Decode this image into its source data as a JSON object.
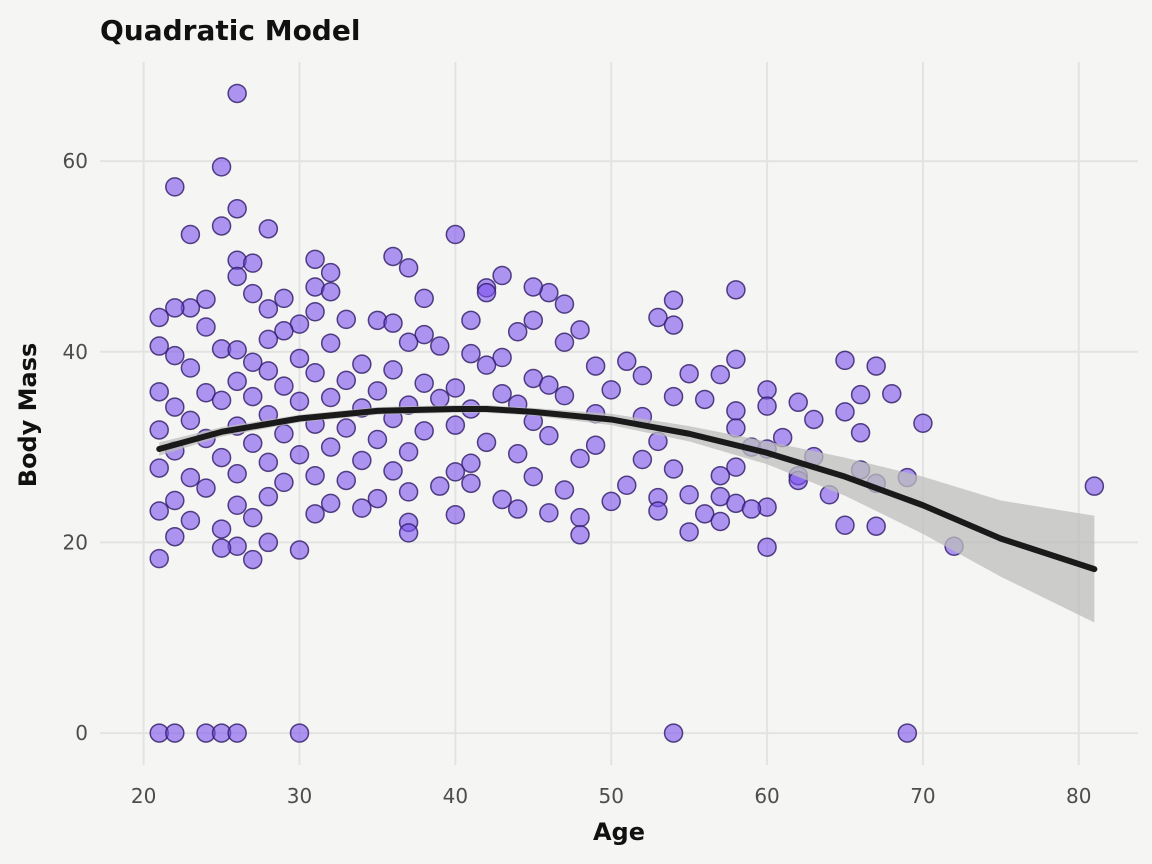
{
  "chart_data": {
    "type": "scatter",
    "title": "Quadratic Model",
    "xlabel": "Age",
    "ylabel": "Body Mass",
    "xlim": [
      17.2,
      83.8
    ],
    "ylim": [
      -3.35,
      70.4
    ],
    "x_ticks": [
      20,
      30,
      40,
      50,
      60,
      70,
      80
    ],
    "y_ticks": [
      0,
      20,
      40,
      60
    ],
    "x_tick_labels": [
      "20",
      "30",
      "40",
      "50",
      "60",
      "70",
      "80"
    ],
    "y_tick_labels": [
      "0",
      "20",
      "40",
      "60"
    ],
    "grid": true,
    "legend": "none",
    "colors": {
      "background": "#f5f5f3",
      "grid": "#e3e3e1",
      "point_fill": "#7b52ec",
      "point_stroke": "#2e1a66",
      "fit_line": "#1a1a1a",
      "ribbon": "#bdbdbd"
    },
    "points": [
      [
        26,
        67.1
      ],
      [
        25,
        59.4
      ],
      [
        22,
        57.3
      ],
      [
        26,
        55.0
      ],
      [
        25,
        53.2
      ],
      [
        28,
        52.9
      ],
      [
        23,
        52.3
      ],
      [
        40,
        52.3
      ],
      [
        36,
        50.0
      ],
      [
        31,
        49.7
      ],
      [
        26,
        49.6
      ],
      [
        27,
        49.3
      ],
      [
        37,
        48.8
      ],
      [
        32,
        48.3
      ],
      [
        43,
        48.0
      ],
      [
        26,
        47.9
      ],
      [
        31,
        46.8
      ],
      [
        42,
        46.7
      ],
      [
        58,
        46.5
      ],
      [
        32,
        46.3
      ],
      [
        46,
        46.2
      ],
      [
        42,
        46.2
      ],
      [
        27,
        46.1
      ],
      [
        45,
        46.8
      ],
      [
        24,
        45.5
      ],
      [
        29,
        45.6
      ],
      [
        38,
        45.6
      ],
      [
        54,
        45.4
      ],
      [
        47,
        45.0
      ],
      [
        23,
        44.6
      ],
      [
        22,
        44.6
      ],
      [
        28,
        44.5
      ],
      [
        31,
        44.2
      ],
      [
        21,
        43.6
      ],
      [
        53,
        43.6
      ],
      [
        33,
        43.4
      ],
      [
        35,
        43.3
      ],
      [
        41,
        43.3
      ],
      [
        36,
        43.0
      ],
      [
        30,
        42.9
      ],
      [
        45,
        43.3
      ],
      [
        54,
        42.8
      ],
      [
        24,
        42.6
      ],
      [
        29,
        42.2
      ],
      [
        48,
        42.3
      ],
      [
        44,
        42.1
      ],
      [
        38,
        41.8
      ],
      [
        28,
        41.3
      ],
      [
        37,
        41.0
      ],
      [
        32,
        40.9
      ],
      [
        47,
        41.0
      ],
      [
        21,
        40.6
      ],
      [
        25,
        40.3
      ],
      [
        39,
        40.6
      ],
      [
        26,
        40.2
      ],
      [
        41,
        39.8
      ],
      [
        43,
        39.4
      ],
      [
        30,
        39.3
      ],
      [
        58,
        39.2
      ],
      [
        65,
        39.1
      ],
      [
        51,
        39.0
      ],
      [
        22,
        39.6
      ],
      [
        27,
        38.9
      ],
      [
        34,
        38.7
      ],
      [
        42,
        38.6
      ],
      [
        49,
        38.5
      ],
      [
        67,
        38.5
      ],
      [
        23,
        38.3
      ],
      [
        36,
        38.1
      ],
      [
        28,
        38.0
      ],
      [
        31,
        37.8
      ],
      [
        55,
        37.7
      ],
      [
        57,
        37.6
      ],
      [
        52,
        37.5
      ],
      [
        45,
        37.2
      ],
      [
        33,
        37.0
      ],
      [
        26,
        36.9
      ],
      [
        38,
        36.7
      ],
      [
        46,
        36.5
      ],
      [
        29,
        36.4
      ],
      [
        40,
        36.2
      ],
      [
        60,
        36.0
      ],
      [
        50,
        36.0
      ],
      [
        21,
        35.8
      ],
      [
        24,
        35.7
      ],
      [
        35,
        35.9
      ],
      [
        43,
        35.6
      ],
      [
        68,
        35.6
      ],
      [
        66,
        35.5
      ],
      [
        47,
        35.4
      ],
      [
        27,
        35.3
      ],
      [
        32,
        35.2
      ],
      [
        54,
        35.3
      ],
      [
        39,
        35.1
      ],
      [
        56,
        35.0
      ],
      [
        62,
        34.7
      ],
      [
        25,
        34.9
      ],
      [
        30,
        34.8
      ],
      [
        44,
        34.5
      ],
      [
        37,
        34.4
      ],
      [
        60,
        34.3
      ],
      [
        22,
        34.2
      ],
      [
        34,
        34.1
      ],
      [
        41,
        34.0
      ],
      [
        58,
        33.8
      ],
      [
        65,
        33.7
      ],
      [
        49,
        33.5
      ],
      [
        28,
        33.4
      ],
      [
        52,
        33.2
      ],
      [
        36,
        33.0
      ],
      [
        63,
        32.9
      ],
      [
        23,
        32.8
      ],
      [
        45,
        32.7
      ],
      [
        70,
        32.5
      ],
      [
        31,
        32.4
      ],
      [
        40,
        32.3
      ],
      [
        26,
        32.2
      ],
      [
        33,
        32.0
      ],
      [
        58,
        32.0
      ],
      [
        21,
        31.8
      ],
      [
        38,
        31.7
      ],
      [
        66,
        31.5
      ],
      [
        29,
        31.4
      ],
      [
        46,
        31.2
      ],
      [
        61,
        31.0
      ],
      [
        24,
        30.9
      ],
      [
        35,
        30.8
      ],
      [
        53,
        30.6
      ],
      [
        42,
        30.5
      ],
      [
        27,
        30.4
      ],
      [
        49,
        30.2
      ],
      [
        32,
        30.0
      ],
      [
        59,
        30.0
      ],
      [
        60,
        29.8
      ],
      [
        22,
        29.6
      ],
      [
        37,
        29.5
      ],
      [
        44,
        29.3
      ],
      [
        30,
        29.2
      ],
      [
        63,
        29.0
      ],
      [
        25,
        28.9
      ],
      [
        48,
        28.8
      ],
      [
        52,
        28.7
      ],
      [
        34,
        28.6
      ],
      [
        28,
        28.4
      ],
      [
        41,
        28.3
      ],
      [
        58,
        27.9
      ],
      [
        21,
        27.8
      ],
      [
        66,
        27.6
      ],
      [
        54,
        27.7
      ],
      [
        36,
        27.5
      ],
      [
        40,
        27.4
      ],
      [
        62,
        27.0
      ],
      [
        26,
        27.2
      ],
      [
        31,
        27.0
      ],
      [
        57,
        27.0
      ],
      [
        23,
        26.8
      ],
      [
        45,
        26.9
      ],
      [
        67,
        26.2
      ],
      [
        69,
        26.8
      ],
      [
        33,
        26.5
      ],
      [
        29,
        26.3
      ],
      [
        41,
        26.2
      ],
      [
        62,
        26.5
      ],
      [
        51,
        26.0
      ],
      [
        39,
        25.9
      ],
      [
        81,
        25.9
      ],
      [
        24,
        25.7
      ],
      [
        47,
        25.5
      ],
      [
        37,
        25.3
      ],
      [
        55,
        25.0
      ],
      [
        64,
        25.0
      ],
      [
        28,
        24.8
      ],
      [
        35,
        24.6
      ],
      [
        53,
        24.7
      ],
      [
        43,
        24.5
      ],
      [
        22,
        24.4
      ],
      [
        50,
        24.3
      ],
      [
        57,
        24.8
      ],
      [
        32,
        24.1
      ],
      [
        58,
        24.1
      ],
      [
        26,
        23.9
      ],
      [
        60,
        23.7
      ],
      [
        34,
        23.6
      ],
      [
        44,
        23.5
      ],
      [
        59,
        23.5
      ],
      [
        21,
        23.3
      ],
      [
        53,
        23.3
      ],
      [
        46,
        23.1
      ],
      [
        31,
        23.0
      ],
      [
        56,
        23.0
      ],
      [
        40,
        22.9
      ],
      [
        27,
        22.6
      ],
      [
        48,
        22.6
      ],
      [
        23,
        22.3
      ],
      [
        57,
        22.2
      ],
      [
        37,
        22.1
      ],
      [
        65,
        21.8
      ],
      [
        67,
        21.7
      ],
      [
        25,
        21.4
      ],
      [
        55,
        21.1
      ],
      [
        37,
        21.0
      ],
      [
        48,
        20.8
      ],
      [
        22,
        20.6
      ],
      [
        28,
        20.0
      ],
      [
        26,
        19.6
      ],
      [
        72,
        19.6
      ],
      [
        60,
        19.5
      ],
      [
        25,
        19.4
      ],
      [
        30,
        19.2
      ],
      [
        21,
        18.3
      ],
      [
        27,
        18.2
      ],
      [
        21,
        0
      ],
      [
        22,
        0
      ],
      [
        24,
        0
      ],
      [
        25,
        0
      ],
      [
        26,
        0
      ],
      [
        30,
        0
      ],
      [
        54,
        0
      ],
      [
        69,
        0
      ]
    ],
    "fit": {
      "model": "quadratic",
      "x": [
        21,
        25,
        30,
        35,
        40,
        42,
        45,
        50,
        55,
        60,
        65,
        70,
        75,
        81
      ],
      "y": [
        29.8,
        31.6,
        33.0,
        33.8,
        34.0,
        34.0,
        33.7,
        32.9,
        31.4,
        29.4,
        26.9,
        23.9,
        20.4,
        17.2
      ],
      "lower": [
        29.1,
        31.1,
        32.6,
        33.4,
        33.6,
        33.6,
        33.3,
        32.3,
        30.6,
        28.2,
        24.9,
        20.9,
        16.4,
        11.6
      ],
      "upper": [
        30.5,
        32.1,
        33.4,
        34.2,
        34.4,
        34.4,
        34.1,
        33.5,
        32.2,
        30.6,
        28.9,
        26.9,
        24.4,
        22.8
      ]
    }
  }
}
